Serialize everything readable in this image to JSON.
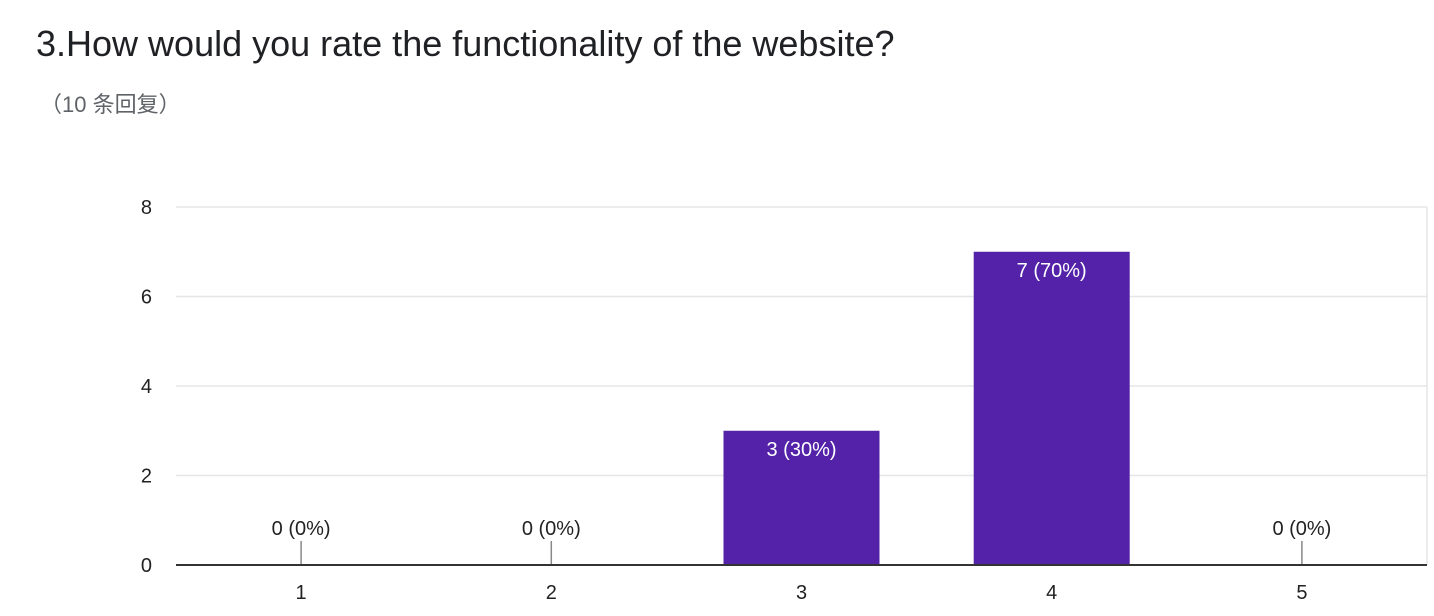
{
  "question": {
    "title": "3.How would you rate the functionality of the website?",
    "responses": "（10 条回复）"
  },
  "colors": {
    "bar": "#5322A8",
    "grid": "#E6E6E6",
    "axis": "#333333",
    "label_inside": "#FFFFFF",
    "label_outside": "#222222"
  },
  "chart_data": {
    "type": "bar",
    "categories": [
      "1",
      "2",
      "3",
      "4",
      "5"
    ],
    "values": [
      0,
      0,
      3,
      7,
      0
    ],
    "data_labels": [
      "0 (0%)",
      "0 (0%)",
      "3 (30%)",
      "7 (70%)",
      "0 (0%)"
    ],
    "ylim": [
      0,
      8
    ],
    "yticks": [
      "0",
      "2",
      "4",
      "6",
      "8"
    ],
    "grid": true,
    "legend": "none",
    "xlabel": "",
    "ylabel": ""
  }
}
